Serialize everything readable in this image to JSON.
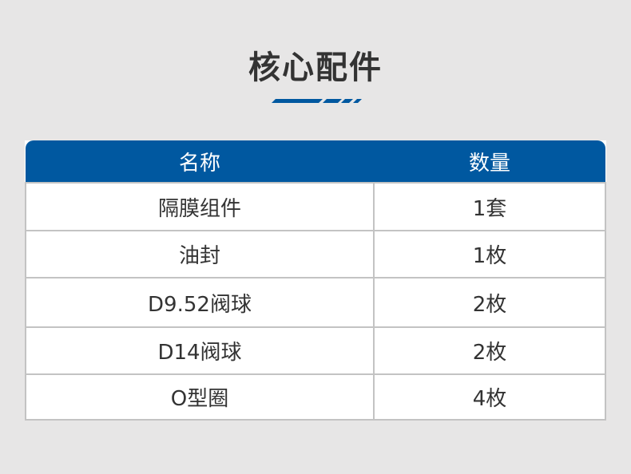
{
  "title": "核心配件",
  "colors": {
    "accent": "#0058a0",
    "background": "#e7e6e6"
  },
  "table": {
    "headers": [
      "名称",
      "数量"
    ],
    "rows": [
      [
        "隔膜组件",
        "1套"
      ],
      [
        "油封",
        "1枚"
      ],
      [
        "D9.52阀球",
        "2枚"
      ],
      [
        "D14阀球",
        "2枚"
      ],
      [
        "O型圈",
        "4枚"
      ]
    ]
  }
}
